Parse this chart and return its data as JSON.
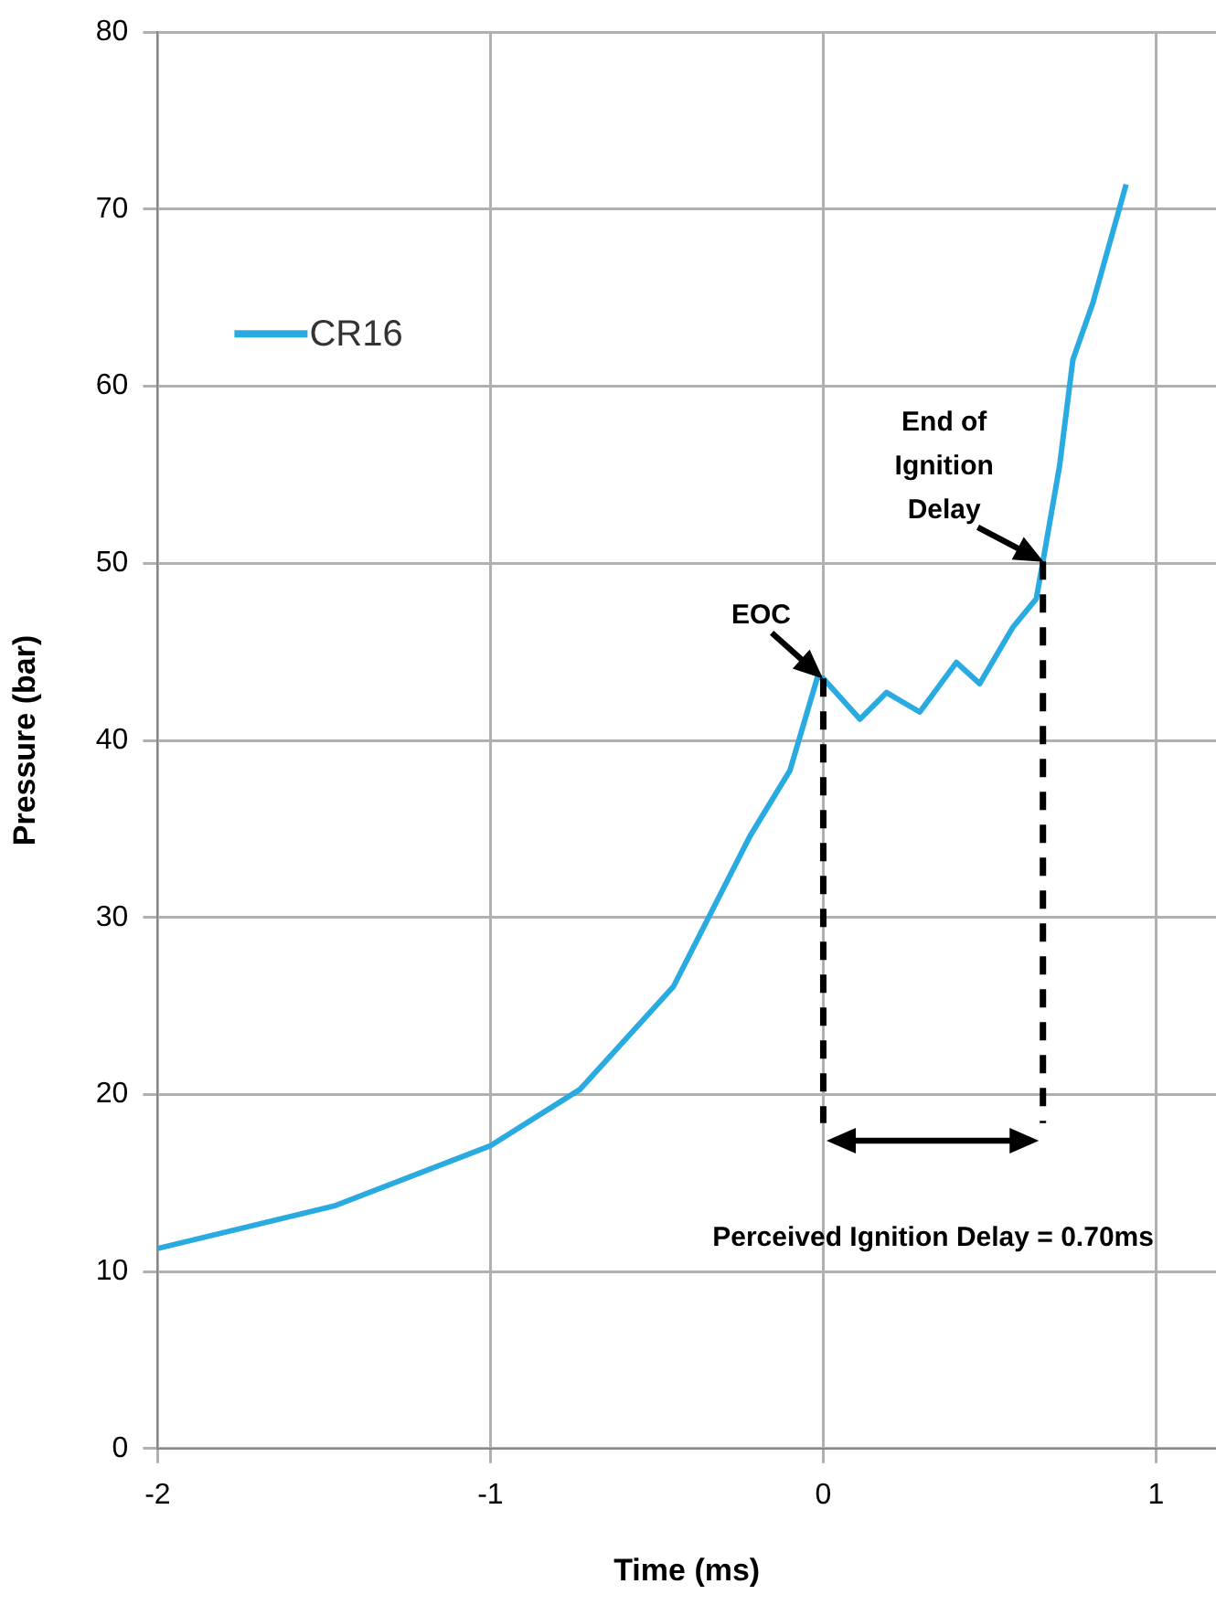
{
  "chart_data": {
    "type": "line",
    "xlabel": "Time (ms)",
    "ylabel": "Pressure (bar)",
    "xlim": [
      -2,
      1.18
    ],
    "xticks": [
      -2,
      -1,
      0,
      1
    ],
    "ylim": [
      0,
      80
    ],
    "yticks": [
      0,
      10,
      20,
      30,
      40,
      50,
      60,
      70,
      80
    ],
    "grid": true,
    "legend": "top left",
    "marker": "none",
    "line_style": "solid",
    "series": [
      {
        "name": "CR16",
        "color": "#29abe2",
        "x": [
          -2,
          -1.47,
          -1,
          -0.73,
          -0.45,
          -0.22,
          -0.1,
          -0.017,
          0,
          0.11,
          0.19,
          0.29,
          0.4,
          0.47,
          0.57,
          0.64,
          0.66,
          0.71,
          0.75,
          0.81,
          0.91
        ],
        "values": [
          11.3,
          13.7,
          17.1,
          20.3,
          26.1,
          34.6,
          38.3,
          43.6,
          43.5,
          41.2,
          42.7,
          41.6,
          44.4,
          43.2,
          46.4,
          48,
          50.1,
          55.5,
          61.5,
          64.7,
          71.4
        ]
      }
    ],
    "ref_lines": [
      {
        "axis": "x",
        "value": 0,
        "color": "#000000",
        "line_style": "dashed"
      },
      {
        "axis": "x",
        "value": 0.66,
        "color": "#000000",
        "line_style": "dashed"
      }
    ],
    "annotations": [
      {
        "text": "EOC",
        "x": 0,
        "y": 43.5
      },
      {
        "text": "End of\nIgnition\nDelay",
        "x": 0.66,
        "y": 50.1
      },
      "Perceived Ignition Delay = 0.70ms"
    ]
  }
}
